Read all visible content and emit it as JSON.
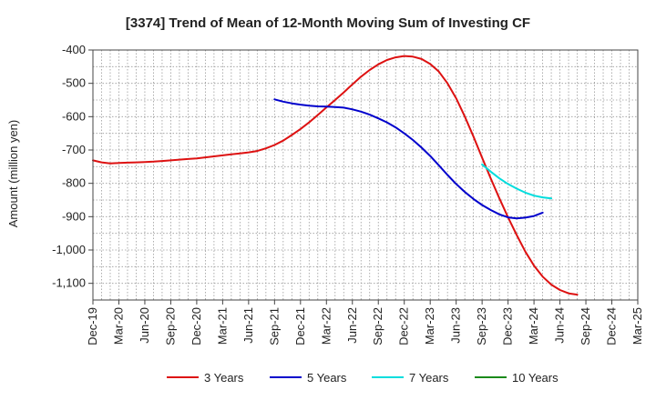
{
  "chart_data": {
    "type": "line",
    "title": "[3374]  Trend of Mean of 12-Month Moving Sum of Investing CF",
    "xlabel": "",
    "ylabel": "Amount (million yen)",
    "ylim": [
      -1150,
      -400
    ],
    "yticks": [
      -400,
      -500,
      -600,
      -700,
      -800,
      -900,
      -1000,
      -1100
    ],
    "ytick_labels": [
      "-400",
      "-500",
      "-600",
      "-700",
      "-800",
      "-900",
      "-1,000",
      "-1,100"
    ],
    "x_start": "Dec-19",
    "x_end": "Mar-25",
    "xtick_labels": [
      "Dec-19",
      "Mar-20",
      "Jun-20",
      "Sep-20",
      "Dec-20",
      "Mar-21",
      "Jun-21",
      "Sep-21",
      "Dec-21",
      "Mar-22",
      "Jun-22",
      "Sep-22",
      "Dec-22",
      "Mar-23",
      "Jun-23",
      "Sep-23",
      "Dec-23",
      "Mar-24",
      "Jun-24",
      "Sep-24",
      "Dec-24",
      "Mar-25"
    ],
    "grid": true,
    "legend_position": "bottom",
    "series": [
      {
        "name": "3 Years",
        "color": "#dd1111",
        "start_month_index": 0,
        "values": [
          -731,
          -737,
          -740,
          -739,
          -738,
          -737,
          -736,
          -735,
          -733,
          -731,
          -729,
          -727,
          -725,
          -722,
          -719,
          -716,
          -713,
          -710,
          -707,
          -703,
          -695,
          -685,
          -672,
          -655,
          -637,
          -617,
          -595,
          -572,
          -550,
          -527,
          -503,
          -480,
          -460,
          -443,
          -430,
          -422,
          -418,
          -420,
          -427,
          -442,
          -465,
          -500,
          -545,
          -600,
          -660,
          -723,
          -785,
          -845,
          -902,
          -955,
          -1005,
          -1047,
          -1080,
          -1104,
          -1120,
          -1130,
          -1134
        ]
      },
      {
        "name": "5 Years",
        "color": "#0000cc",
        "start_month_index": 21,
        "values": [
          -548,
          -555,
          -560,
          -564,
          -567,
          -569,
          -570,
          -571,
          -573,
          -578,
          -585,
          -594,
          -605,
          -617,
          -632,
          -650,
          -670,
          -693,
          -718,
          -746,
          -775,
          -802,
          -826,
          -847,
          -865,
          -880,
          -893,
          -902,
          -905,
          -903,
          -898,
          -888
        ]
      },
      {
        "name": "7 Years",
        "color": "#00dddd",
        "start_month_index": 45,
        "values": [
          -743,
          -765,
          -785,
          -802,
          -816,
          -828,
          -837,
          -842,
          -845
        ]
      },
      {
        "name": "10 Years",
        "color": "#1a8a1a",
        "start_month_index": 0,
        "values": []
      }
    ]
  }
}
